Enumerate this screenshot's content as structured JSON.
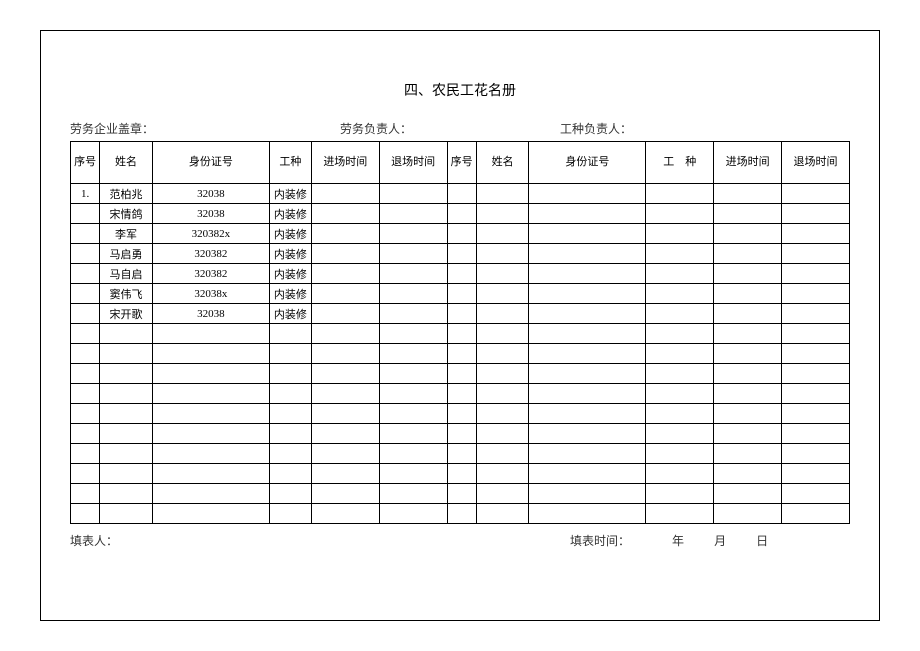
{
  "title": "四、农民工花名册",
  "header": {
    "stamp_label": "劳务企业盖章：",
    "labor_leader_label": "劳务负责人：",
    "work_leader_label": "工种负责人："
  },
  "columns": {
    "seq": "序号",
    "name": "姓名",
    "id": "身份证号",
    "type_narrow": "工种",
    "type_wide": "工　种",
    "enter": "进场时间",
    "exit": "退场时间"
  },
  "rows": [
    {
      "seq": "1.",
      "name": "范柏兆",
      "id": "32038",
      "type": "内装修",
      "enter": "",
      "exit": ""
    },
    {
      "seq": "",
      "name": "宋情鸽",
      "id": "32038",
      "type": "内装修",
      "enter": "",
      "exit": ""
    },
    {
      "seq": "",
      "name": "李军",
      "id": "320382x",
      "type": "内装修",
      "enter": "",
      "exit": ""
    },
    {
      "seq": "",
      "name": "马启勇",
      "id": "320382",
      "type": "内装修",
      "enter": "",
      "exit": ""
    },
    {
      "seq": "",
      "name": "马自启",
      "id": "320382",
      "type": "内装修",
      "enter": "",
      "exit": ""
    },
    {
      "seq": "",
      "name": "窦伟飞",
      "id": "32038x",
      "type": "内装修",
      "enter": "",
      "exit": ""
    },
    {
      "seq": "",
      "name": "宋开歌",
      "id": "32038",
      "type": "内装修",
      "enter": "",
      "exit": ""
    },
    {
      "seq": "",
      "name": "",
      "id": "",
      "type": "",
      "enter": "",
      "exit": ""
    },
    {
      "seq": "",
      "name": "",
      "id": "",
      "type": "",
      "enter": "",
      "exit": ""
    },
    {
      "seq": "",
      "name": "",
      "id": "",
      "type": "",
      "enter": "",
      "exit": ""
    },
    {
      "seq": "",
      "name": "",
      "id": "",
      "type": "",
      "enter": "",
      "exit": ""
    },
    {
      "seq": "",
      "name": "",
      "id": "",
      "type": "",
      "enter": "",
      "exit": ""
    },
    {
      "seq": "",
      "name": "",
      "id": "",
      "type": "",
      "enter": "",
      "exit": ""
    },
    {
      "seq": "",
      "name": "",
      "id": "",
      "type": "",
      "enter": "",
      "exit": ""
    },
    {
      "seq": "",
      "name": "",
      "id": "",
      "type": "",
      "enter": "",
      "exit": ""
    },
    {
      "seq": "",
      "name": "",
      "id": "",
      "type": "",
      "enter": "",
      "exit": ""
    },
    {
      "seq": "",
      "name": "",
      "id": "",
      "type": "",
      "enter": "",
      "exit": ""
    }
  ],
  "footer": {
    "filler_label": "填表人：",
    "time_label": "填表时间：",
    "year": "年",
    "month": "月",
    "day": "日"
  }
}
